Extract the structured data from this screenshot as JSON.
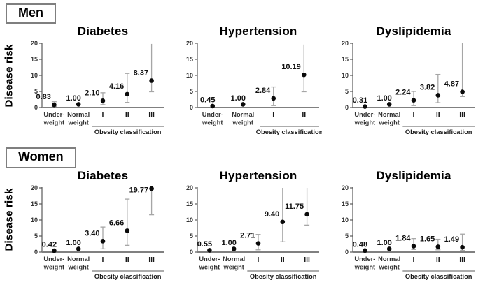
{
  "figure": {
    "ylabel": "Disease risk",
    "group_label": "Obesity classification"
  },
  "sections": [
    {
      "label": "Men"
    },
    {
      "label": "Women"
    }
  ],
  "colors": {
    "point": "#0a0a0a",
    "error_bar": "#a6a6a6",
    "y_axis": "#595959",
    "x_axis": "#808080",
    "label_text": "#111111",
    "tick_text": "#333333"
  },
  "chart_data": [
    {
      "type": "scatter",
      "section": "Men",
      "title": "Diabetes",
      "ylabel": "Disease risk",
      "ylim": [
        0,
        20
      ],
      "yticks": [
        0,
        5,
        10,
        15,
        20
      ],
      "ytick_labels": [
        "0",
        "5",
        "10",
        "15",
        "20"
      ],
      "categories": [
        "Under-\nweight",
        "Normal\nweight",
        "I",
        "II",
        "III"
      ],
      "group_start_index": 2,
      "group_label": "Obesity classification",
      "values": [
        0.83,
        1.0,
        2.1,
        4.16,
        8.37
      ],
      "labels": [
        "0.83",
        "1.00",
        "2.10",
        "4.16",
        "8.37"
      ],
      "error_low": [
        0.35,
        null,
        0.9,
        1.6,
        4.9
      ],
      "error_high": [
        1.8,
        null,
        4.6,
        10.6,
        19.8
      ]
    },
    {
      "type": "scatter",
      "section": "Men",
      "title": "Hypertension",
      "ylabel": "Disease risk",
      "ylim": [
        0,
        20
      ],
      "yticks": [
        0,
        5,
        10,
        15,
        20
      ],
      "ytick_labels": [
        "0",
        "5",
        "10",
        "15",
        "20"
      ],
      "categories": [
        "Under-\nweight",
        "Normal\nweight",
        "I",
        "II"
      ],
      "group_start_index": 2,
      "group_label": "Obesity classification",
      "values": [
        0.45,
        1.0,
        2.84,
        10.19
      ],
      "labels": [
        "0.45",
        "1.00",
        "2.84",
        "10.19"
      ],
      "error_low": [
        null,
        null,
        0.6,
        4.9
      ],
      "error_high": [
        null,
        null,
        6.4,
        19.6
      ]
    },
    {
      "type": "scatter",
      "section": "Men",
      "title": "Dyslipidemia",
      "ylabel": "Disease risk",
      "ylim": [
        0,
        20
      ],
      "yticks": [
        0,
        5,
        10,
        15,
        20
      ],
      "ytick_labels": [
        "0",
        "5",
        "10",
        "15",
        "20"
      ],
      "categories": [
        "Under-\nweight",
        "Normal\nweight",
        "I",
        "II",
        "III"
      ],
      "group_start_index": 2,
      "group_label": "Obesity classification",
      "values": [
        0.31,
        1.0,
        2.24,
        3.82,
        4.87
      ],
      "labels": [
        "0.31",
        "1.00",
        "2.24",
        "3.82",
        "4.87"
      ],
      "error_low": [
        null,
        null,
        0.6,
        1.5,
        3.4
      ],
      "error_high": [
        null,
        null,
        5.0,
        10.3,
        20
      ]
    },
    {
      "type": "scatter",
      "section": "Women",
      "title": "Diabetes",
      "ylabel": "Disease risk",
      "ylim": [
        0,
        20
      ],
      "yticks": [
        0,
        5,
        10,
        15,
        20
      ],
      "ytick_labels": [
        "0",
        "5",
        "10",
        "15",
        "20"
      ],
      "categories": [
        "Under-\nweight",
        "Normal\nweight",
        "I",
        "II",
        "III"
      ],
      "group_start_index": 2,
      "group_label": "Obesity classification",
      "values": [
        0.42,
        1.0,
        3.4,
        6.66,
        19.77
      ],
      "labels": [
        "0.42",
        "1.00",
        "3.40",
        "6.66",
        "19.77"
      ],
      "error_low": [
        null,
        null,
        1.0,
        2.1,
        11.6
      ],
      "error_high": [
        null,
        null,
        7.8,
        16.5,
        20
      ]
    },
    {
      "type": "scatter",
      "section": "Women",
      "title": "Hypertension",
      "ylabel": "Disease risk",
      "ylim": [
        0,
        20
      ],
      "yticks": [
        0,
        5,
        10,
        15,
        20
      ],
      "ytick_labels": [
        "0",
        "5",
        "10",
        "15",
        "20"
      ],
      "categories": [
        "Under-\nweight",
        "Normal\nweight",
        "I",
        "II",
        "III"
      ],
      "group_start_index": 2,
      "group_label": "Obesity classification",
      "values": [
        0.55,
        1.0,
        2.71,
        9.4,
        11.75
      ],
      "labels": [
        "0.55",
        "1.00",
        "2.71",
        "9.40",
        "11.75"
      ],
      "error_low": [
        null,
        null,
        0.7,
        3.2,
        8.4
      ],
      "error_high": [
        null,
        null,
        5.5,
        20,
        20
      ]
    },
    {
      "type": "scatter",
      "section": "Women",
      "title": "Dyslipidemia",
      "ylabel": "Disease risk",
      "ylim": [
        0,
        20
      ],
      "yticks": [
        0,
        5,
        10,
        15,
        20
      ],
      "ytick_labels": [
        "0",
        "5",
        "10",
        "15",
        "20"
      ],
      "categories": [
        "Under-\nweight",
        "Normal\nweight",
        "I",
        "II",
        "III"
      ],
      "group_start_index": 2,
      "group_label": "Obesity classification",
      "values": [
        0.48,
        1.0,
        1.84,
        1.65,
        1.49
      ],
      "labels": [
        "0.48",
        "1.00",
        "1.84",
        "1.65",
        "1.49"
      ],
      "error_low": [
        null,
        null,
        0.8,
        0.7,
        0.5
      ],
      "error_high": [
        null,
        null,
        4.2,
        4.0,
        5.6
      ]
    }
  ]
}
